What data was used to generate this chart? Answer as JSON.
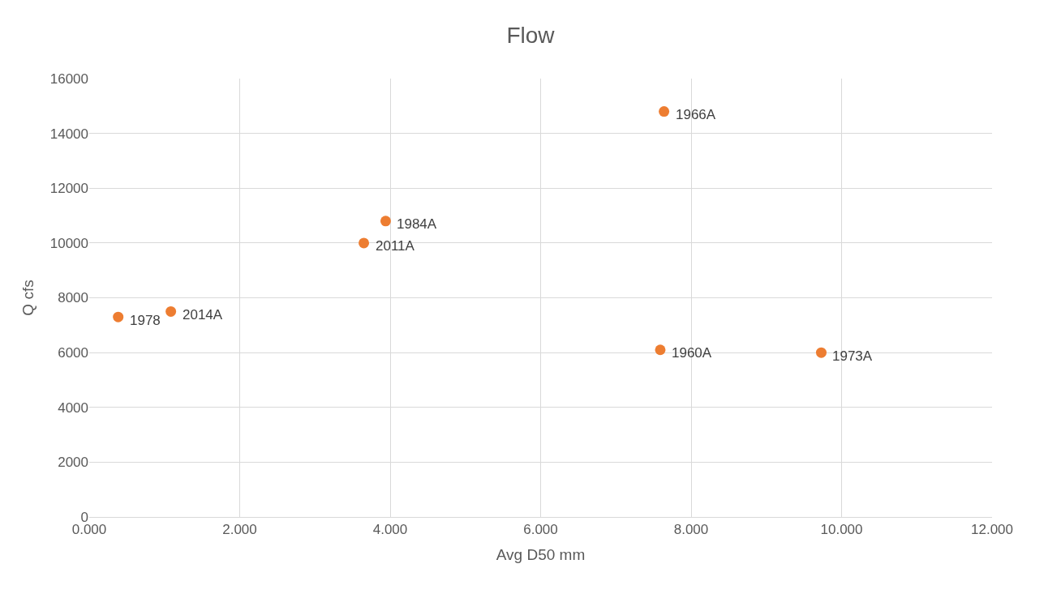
{
  "chart_data": {
    "type": "scatter",
    "title": "Flow",
    "xlabel": "Avg D50 mm",
    "ylabel": "Q cfs",
    "x": [
      0.385,
      1.085,
      3.65,
      3.94,
      7.64,
      7.59,
      9.73
    ],
    "series": [
      {
        "color": "#ed7d31",
        "values": [
          7300,
          7500,
          10000,
          10800,
          14800,
          6100,
          6000
        ]
      }
    ],
    "xlim": [
      0,
      12
    ],
    "xticks": [
      {
        "value": 0,
        "label": "0.000"
      },
      {
        "value": 2,
        "label": "2.000"
      },
      {
        "value": 4,
        "label": "4.000"
      },
      {
        "value": 6,
        "label": "6.000"
      },
      {
        "value": 8,
        "label": "8.000"
      },
      {
        "value": 10,
        "label": "10.000"
      },
      {
        "value": 12,
        "label": "12.000"
      }
    ],
    "ylim": [
      0,
      16000
    ],
    "yticks": [
      0,
      2000,
      4000,
      6000,
      8000,
      10000,
      12000,
      14000,
      16000
    ],
    "annotations": [
      {
        "text": "1978",
        "x": 0.385,
        "y": 7300
      },
      {
        "text": "2014A",
        "x": 1.085,
        "y": 7500
      },
      {
        "text": "2011A",
        "x": 3.65,
        "y": 10000
      },
      {
        "text": "1984A",
        "x": 3.94,
        "y": 10800
      },
      {
        "text": "1966A",
        "x": 7.64,
        "y": 14800
      },
      {
        "text": "1960A",
        "x": 7.59,
        "y": 6100
      },
      {
        "text": "1973A",
        "x": 9.73,
        "y": 6000
      }
    ],
    "grid": true,
    "marker": "circle"
  }
}
